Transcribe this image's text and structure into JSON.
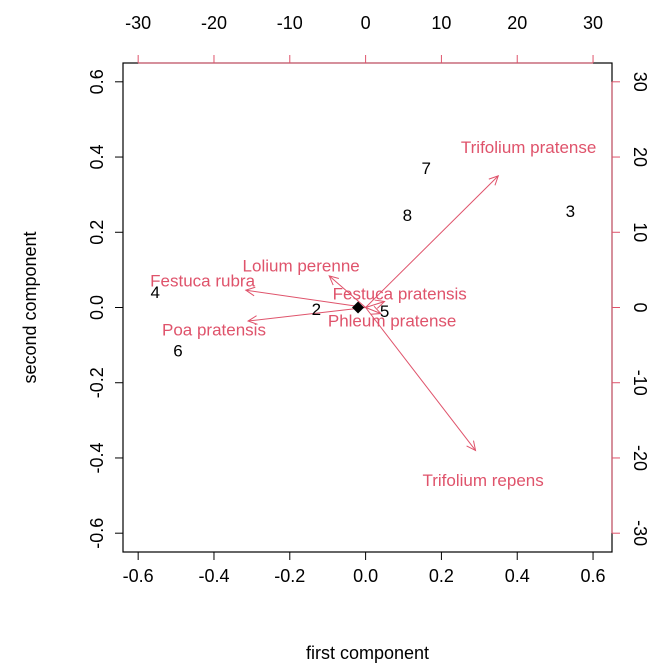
{
  "chart_data": {
    "type": "biplot",
    "xlabel": "first component",
    "ylabel": "second component",
    "xlim": [
      -0.64,
      0.65
    ],
    "ylim": [
      -0.65,
      0.65
    ],
    "xticks": [
      -0.6,
      -0.4,
      -0.2,
      0.0,
      0.2,
      0.4,
      0.6
    ],
    "yticks": [
      -0.6,
      -0.4,
      -0.2,
      0.0,
      0.2,
      0.4,
      0.6
    ],
    "xtick_labels": [
      "-0.6",
      "-0.4",
      "-0.2",
      "0.0",
      "0.2",
      "0.4",
      "0.6"
    ],
    "ytick_labels": [
      "-0.6",
      "-0.4",
      "-0.2",
      "0.0",
      "0.2",
      "0.4",
      "0.6"
    ],
    "top_axis": {
      "ticks": [
        -30,
        -20,
        -10,
        0,
        10,
        20,
        30
      ],
      "labels": [
        "-30",
        "-20",
        "-10",
        "0",
        "10",
        "20",
        "30"
      ],
      "color": "#DF536B"
    },
    "right_axis": {
      "ticks": [
        -30,
        -20,
        -10,
        0,
        10,
        20,
        30
      ],
      "labels": [
        "-30",
        "-20",
        "-10",
        "0",
        "10",
        "20",
        "30"
      ],
      "color": "#DF536B"
    },
    "observations": [
      {
        "label": "1",
        "x": -0.02,
        "y": 0.0
      },
      {
        "label": "2",
        "x": -0.13,
        "y": -0.005
      },
      {
        "label": "3",
        "x": 0.54,
        "y": 0.255
      },
      {
        "label": "4",
        "x": -0.555,
        "y": 0.04
      },
      {
        "label": "5",
        "x": 0.05,
        "y": -0.01
      },
      {
        "label": "6",
        "x": -0.495,
        "y": -0.115
      },
      {
        "label": "7",
        "x": 0.16,
        "y": 0.37
      },
      {
        "label": "8",
        "x": 0.11,
        "y": 0.245
      }
    ],
    "variables": [
      {
        "label": "Trifolium pratense",
        "x": 17.5,
        "y": 17.5,
        "lx": 21.5,
        "ly": 21.3
      },
      {
        "label": "Trifolium repens",
        "x": 14.5,
        "y": -19.0,
        "lx": 15.5,
        "ly": -23.0
      },
      {
        "label": "Festuca rubra",
        "x": -15.8,
        "y": 2.3,
        "lx": -21.5,
        "ly": 3.5
      },
      {
        "label": "Lolium perenne",
        "x": -4.8,
        "y": 4.2,
        "lx": -8.5,
        "ly": 5.5
      },
      {
        "label": "Festuca pratensis",
        "x": 2.5,
        "y": 0.8,
        "lx": 4.5,
        "ly": 1.8
      },
      {
        "label": "Poa pratensis",
        "x": -15.5,
        "y": -1.8,
        "lx": -20.0,
        "ly": -3.0
      },
      {
        "label": "Phleum pratense",
        "x": 2.0,
        "y": -0.8,
        "lx": 3.5,
        "ly": -1.8
      }
    ],
    "series_colors": {
      "observations": "#000000",
      "variables": "#DF536B"
    }
  }
}
